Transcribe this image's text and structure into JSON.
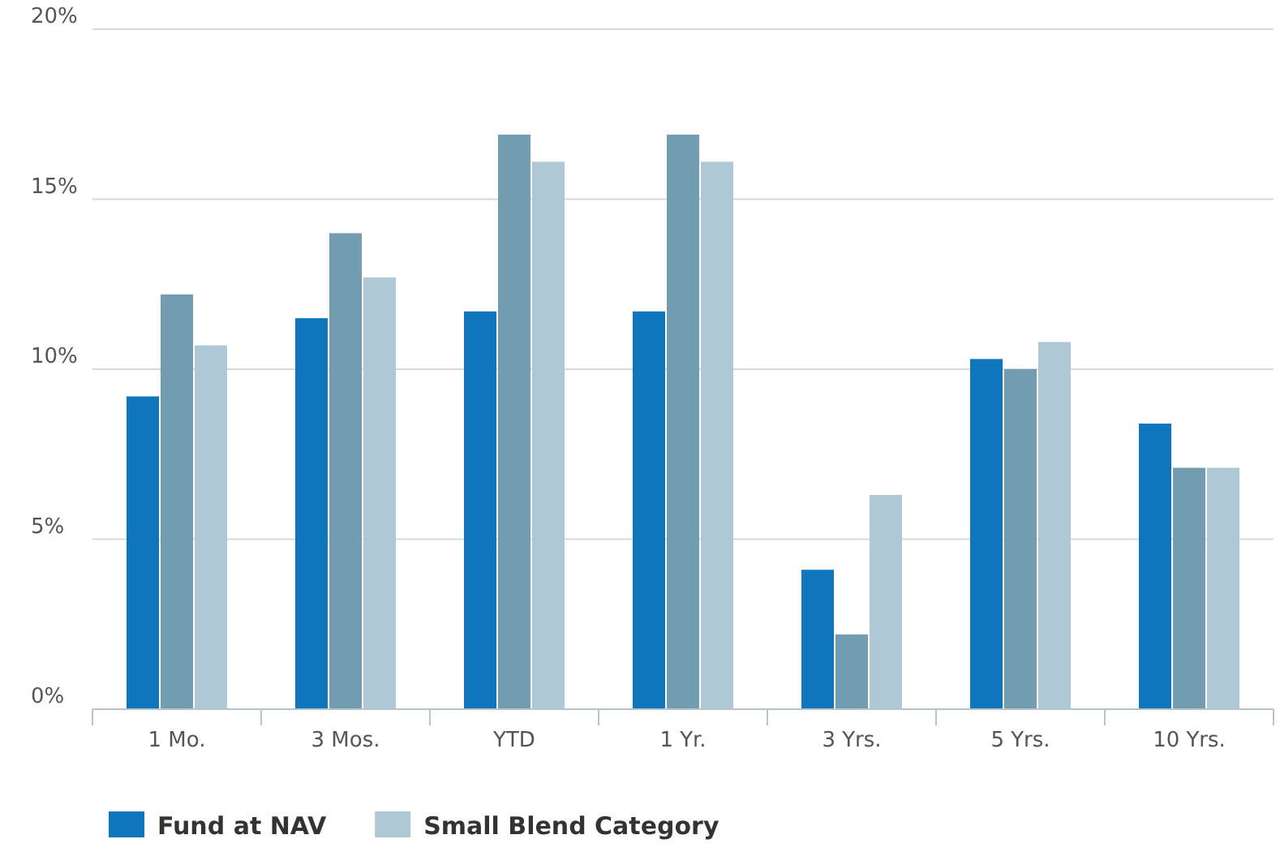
{
  "chart_data": {
    "type": "bar",
    "categories": [
      "1 Mo.",
      "3 Mos.",
      "YTD",
      "1 Yr.",
      "3 Yrs.",
      "5 Yrs.",
      "10 Yrs."
    ],
    "series": [
      {
        "name": "Fund at NAV",
        "color": "#0f75bc",
        "values": [
          9.2,
          11.5,
          11.7,
          11.7,
          4.1,
          10.3,
          8.4
        ]
      },
      {
        "color": "#729cb0",
        "values": [
          12.2,
          14.0,
          16.9,
          16.9,
          2.2,
          10.0,
          7.1
        ]
      },
      {
        "name": "Small Blend Category",
        "color": "#afc8d5",
        "values": [
          10.7,
          12.7,
          16.1,
          16.1,
          6.3,
          10.8,
          7.1
        ]
      }
    ],
    "ylim": [
      0,
      20
    ],
    "yticks": [
      {
        "value": 0,
        "label": "0%"
      },
      {
        "value": 5,
        "label": "5%"
      },
      {
        "value": 10,
        "label": "10%"
      },
      {
        "value": 15,
        "label": "15%"
      },
      {
        "value": 20,
        "label": "20%"
      }
    ],
    "grid": "y",
    "legend": "bottom"
  }
}
